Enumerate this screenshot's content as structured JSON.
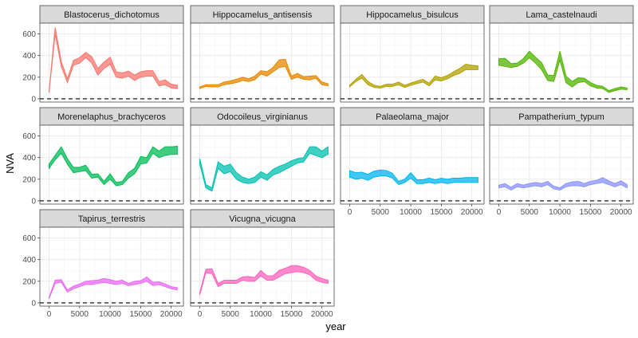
{
  "chart_data": {
    "type": "area",
    "xlabel": "year",
    "ylabel": "NVA",
    "xlim": [
      -1500,
      22000
    ],
    "ylim": [
      -30,
      700
    ],
    "x_ticks": [
      0,
      5000,
      10000,
      15000,
      20000
    ],
    "y_ticks": [
      0,
      200,
      400,
      600
    ],
    "reference_line_y": 0,
    "grid": true,
    "legend": "none",
    "panels": [
      {
        "name": "Blastocerus_dichotomus",
        "color": "#F8766D",
        "x": [
          0,
          1000,
          2000,
          3000,
          4000,
          5000,
          6000,
          7000,
          8000,
          9000,
          10000,
          11000,
          12000,
          13000,
          14000,
          15000,
          16000,
          17000,
          18000,
          19000,
          20000,
          21000
        ],
        "lower": [
          55,
          600,
          300,
          150,
          310,
          330,
          380,
          330,
          220,
          280,
          320,
          200,
          190,
          210,
          170,
          200,
          210,
          210,
          120,
          130,
          100,
          95
        ],
        "upper": [
          70,
          660,
          345,
          185,
          355,
          380,
          430,
          390,
          280,
          340,
          385,
          250,
          240,
          255,
          220,
          250,
          260,
          260,
          160,
          175,
          135,
          125
        ]
      },
      {
        "name": "Hippocamelus_antisensis",
        "color": "#E58700",
        "x": [
          0,
          1000,
          2000,
          3000,
          4000,
          5000,
          6000,
          7000,
          8000,
          9000,
          10000,
          11000,
          12000,
          13000,
          14000,
          15000,
          16000,
          17000,
          18000,
          19000,
          20000,
          21000
        ],
        "lower": [
          95,
          115,
          110,
          110,
          130,
          140,
          150,
          170,
          160,
          175,
          230,
          210,
          250,
          290,
          300,
          180,
          200,
          180,
          175,
          190,
          130,
          120
        ],
        "upper": [
          110,
          130,
          130,
          130,
          155,
          165,
          180,
          200,
          185,
          210,
          260,
          250,
          290,
          360,
          365,
          210,
          235,
          205,
          210,
          215,
          155,
          140
        ]
      },
      {
        "name": "Hippocamelus_bisulcus",
        "color": "#B2A100",
        "x": [
          0,
          1000,
          2000,
          3000,
          4000,
          5000,
          6000,
          7000,
          8000,
          9000,
          10000,
          11000,
          12000,
          13000,
          14000,
          15000,
          16000,
          17000,
          18000,
          19000,
          20000,
          21000
        ],
        "lower": [
          110,
          160,
          190,
          130,
          105,
          100,
          115,
          115,
          130,
          105,
          125,
          140,
          155,
          120,
          175,
          165,
          185,
          215,
          235,
          270,
          270,
          270
        ],
        "upper": [
          125,
          180,
          225,
          160,
          125,
          115,
          135,
          135,
          155,
          125,
          145,
          165,
          180,
          145,
          210,
          195,
          215,
          250,
          280,
          320,
          310,
          305
        ]
      },
      {
        "name": "Lama_castelnaudi",
        "color": "#50B400",
        "x": [
          0,
          1000,
          2000,
          3000,
          4000,
          5000,
          6000,
          7000,
          8000,
          9000,
          10000,
          11000,
          12000,
          13000,
          14000,
          15000,
          16000,
          17000,
          18000,
          19000,
          20000,
          21000
        ],
        "lower": [
          310,
          300,
          290,
          300,
          330,
          380,
          330,
          270,
          170,
          160,
          360,
          150,
          110,
          150,
          160,
          120,
          100,
          95,
          60,
          75,
          90,
          85
        ],
        "upper": [
          370,
          375,
          325,
          330,
          370,
          440,
          385,
          335,
          220,
          215,
          440,
          210,
          160,
          195,
          190,
          150,
          125,
          115,
          75,
          95,
          110,
          100
        ]
      },
      {
        "name": "Morenelaphus_brachyceros",
        "color": "#00BC56",
        "x": [
          0,
          1000,
          2000,
          3000,
          4000,
          5000,
          6000,
          7000,
          8000,
          9000,
          10000,
          11000,
          12000,
          13000,
          14000,
          15000,
          16000,
          17000,
          18000,
          19000,
          20000,
          21000
        ],
        "lower": [
          300,
          380,
          440,
          340,
          260,
          270,
          280,
          210,
          220,
          150,
          200,
          140,
          150,
          210,
          250,
          340,
          350,
          440,
          400,
          420,
          430,
          430
        ],
        "upper": [
          340,
          420,
          500,
          390,
          310,
          310,
          330,
          245,
          250,
          180,
          250,
          170,
          180,
          260,
          300,
          410,
          400,
          500,
          460,
          500,
          500,
          505
        ]
      },
      {
        "name": "Odocoileus_virginianus",
        "color": "#00C0AF",
        "x": [
          0,
          1000,
          2000,
          3000,
          4000,
          5000,
          6000,
          7000,
          8000,
          9000,
          10000,
          11000,
          12000,
          13000,
          14000,
          15000,
          16000,
          17000,
          18000,
          19000,
          20000,
          21000
        ],
        "lower": [
          340,
          120,
          90,
          300,
          250,
          270,
          200,
          170,
          160,
          170,
          220,
          190,
          240,
          260,
          290,
          320,
          350,
          360,
          440,
          420,
          400,
          430
        ],
        "upper": [
          390,
          150,
          120,
          360,
          320,
          340,
          260,
          220,
          200,
          220,
          270,
          240,
          290,
          320,
          340,
          370,
          390,
          400,
          500,
          500,
          460,
          500
        ]
      },
      {
        "name": "Palaeolama_major",
        "color": "#00B4EF",
        "x": [
          0,
          1000,
          2000,
          3000,
          4000,
          5000,
          6000,
          7000,
          8000,
          9000,
          10000,
          11000,
          12000,
          13000,
          14000,
          15000,
          16000,
          17000,
          18000,
          19000,
          20000,
          21000
        ],
        "lower": [
          220,
          200,
          210,
          190,
          220,
          230,
          230,
          210,
          150,
          170,
          210,
          160,
          160,
          170,
          160,
          170,
          160,
          170,
          170,
          170,
          170,
          170
        ],
        "upper": [
          280,
          260,
          265,
          245,
          275,
          285,
          280,
          255,
          180,
          200,
          260,
          195,
          195,
          210,
          195,
          210,
          200,
          210,
          210,
          215,
          215,
          215
        ]
      },
      {
        "name": "Pampatherium_typum",
        "color": "#8B93FF",
        "x": [
          0,
          1000,
          2000,
          3000,
          4000,
          5000,
          6000,
          7000,
          8000,
          9000,
          10000,
          11000,
          12000,
          13000,
          14000,
          15000,
          16000,
          17000,
          18000,
          19000,
          20000,
          21000
        ],
        "lower": [
          120,
          130,
          100,
          130,
          120,
          130,
          140,
          130,
          150,
          110,
          100,
          130,
          140,
          140,
          130,
          150,
          160,
          170,
          150,
          130,
          150,
          120
        ],
        "upper": [
          145,
          160,
          125,
          160,
          145,
          160,
          170,
          160,
          180,
          135,
          120,
          160,
          175,
          180,
          160,
          180,
          190,
          215,
          185,
          160,
          185,
          150
        ]
      },
      {
        "name": "Tapirus_terrestris",
        "color": "#E76BF3",
        "x": [
          0,
          1000,
          2000,
          3000,
          4000,
          5000,
          6000,
          7000,
          8000,
          9000,
          10000,
          11000,
          12000,
          13000,
          14000,
          15000,
          16000,
          17000,
          18000,
          19000,
          20000,
          21000
        ],
        "lower": [
          40,
          180,
          190,
          100,
          130,
          150,
          170,
          170,
          180,
          190,
          180,
          170,
          180,
          160,
          170,
          180,
          200,
          160,
          170,
          150,
          130,
          120
        ],
        "upper": [
          50,
          210,
          215,
          120,
          155,
          175,
          200,
          205,
          210,
          225,
          215,
          200,
          210,
          180,
          200,
          205,
          240,
          190,
          195,
          175,
          150,
          140
        ]
      },
      {
        "name": "Vicugna_vicugna",
        "color": "#FF62BC",
        "x": [
          0,
          1000,
          2000,
          3000,
          4000,
          5000,
          6000,
          7000,
          8000,
          9000,
          10000,
          11000,
          12000,
          13000,
          14000,
          15000,
          16000,
          17000,
          18000,
          19000,
          20000,
          21000
        ],
        "lower": [
          75,
          280,
          270,
          150,
          180,
          180,
          180,
          210,
          200,
          200,
          250,
          210,
          210,
          240,
          270,
          280,
          290,
          280,
          260,
          210,
          190,
          180
        ],
        "upper": [
          95,
          310,
          315,
          180,
          210,
          210,
          210,
          240,
          245,
          235,
          300,
          250,
          250,
          300,
          320,
          345,
          345,
          330,
          300,
          250,
          225,
          210
        ]
      }
    ]
  }
}
